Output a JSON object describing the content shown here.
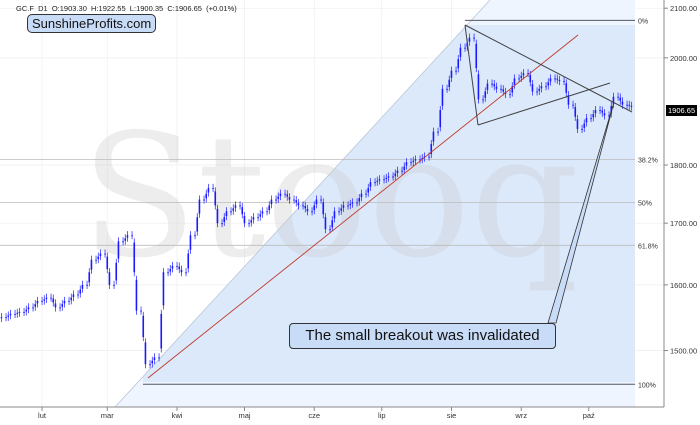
{
  "header": {
    "symbol": "GC.F",
    "interval": "D1",
    "text": "GC.F  D1  O:1903.30  H:1922.55  L:1900.35  C:1906.65  (+0.01%)"
  },
  "logo": "SunshineProfits.com",
  "watermark": "Stooq",
  "annotation": "The small breakout was invalidated",
  "chart_data": {
    "type": "candlestick",
    "title": "",
    "y_scale": "log",
    "ylim": [
      1419,
      2117
    ],
    "y_ticks": [
      "2100.00",
      "2000.00",
      "1800.00",
      "1700.00",
      "1600.00",
      "1500.00"
    ],
    "y_tick_values": [
      2100,
      2000,
      1800,
      1700,
      1600,
      1500
    ],
    "x_ticks": [
      "lut",
      "mar",
      "kwi",
      "maj",
      "cze",
      "lip",
      "sie",
      "wrz",
      "paź"
    ],
    "x_tick_dates": [
      "2020-02-01",
      "2020-03-01",
      "2020-04-01",
      "2020-05-01",
      "2020-06-01",
      "2020-07-01",
      "2020-08-01",
      "2020-09-01",
      "2020-10-01"
    ],
    "last_price": "1906.65",
    "candle_color": "#1a1aff",
    "dates": [
      "2020-01-13",
      "2020-01-17",
      "2020-01-21",
      "2020-01-25",
      "2020-01-29",
      "2020-02-02",
      "2020-02-06",
      "2020-02-10",
      "2020-02-14",
      "2020-02-18",
      "2020-02-22",
      "2020-02-26",
      "2020-03-01",
      "2020-03-05",
      "2020-03-09",
      "2020-03-13",
      "2020-03-17",
      "2020-03-21",
      "2020-03-25",
      "2020-03-29",
      "2020-04-02",
      "2020-04-06",
      "2020-04-10",
      "2020-04-14",
      "2020-04-18",
      "2020-04-22",
      "2020-04-26",
      "2020-04-30",
      "2020-05-04",
      "2020-05-08",
      "2020-05-12",
      "2020-05-16",
      "2020-05-20",
      "2020-05-24",
      "2020-05-28",
      "2020-06-01",
      "2020-06-05",
      "2020-06-09",
      "2020-06-13",
      "2020-06-17",
      "2020-06-21",
      "2020-06-25",
      "2020-06-29",
      "2020-07-03",
      "2020-07-07",
      "2020-07-11",
      "2020-07-15",
      "2020-07-19",
      "2020-07-23",
      "2020-07-27",
      "2020-07-31",
      "2020-08-04",
      "2020-08-08",
      "2020-08-12",
      "2020-08-16",
      "2020-08-20",
      "2020-08-24",
      "2020-08-28",
      "2020-09-01",
      "2020-09-05",
      "2020-09-09",
      "2020-09-13",
      "2020-09-17",
      "2020-09-21",
      "2020-09-25",
      "2020-09-29",
      "2020-10-03",
      "2020-10-07",
      "2020-10-11",
      "2020-10-15",
      "2020-10-19"
    ],
    "close": [
      1550,
      1555,
      1558,
      1565,
      1575,
      1580,
      1565,
      1575,
      1585,
      1600,
      1640,
      1650,
      1600,
      1670,
      1680,
      1560,
      1480,
      1490,
      1620,
      1630,
      1620,
      1680,
      1740,
      1760,
      1700,
      1720,
      1730,
      1700,
      1710,
      1720,
      1740,
      1750,
      1740,
      1730,
      1720,
      1740,
      1690,
      1720,
      1730,
      1735,
      1750,
      1770,
      1775,
      1780,
      1790,
      1805,
      1810,
      1815,
      1860,
      1940,
      1975,
      2020,
      2040,
      1920,
      1950,
      1940,
      1930,
      1960,
      1970,
      1935,
      1945,
      1960,
      1955,
      1910,
      1865,
      1885,
      1900,
      1890,
      1925,
      1910,
      1906.65
    ],
    "fibonacci": {
      "high": 2075,
      "low": 1451,
      "levels": [
        {
          "label": "0%",
          "ratio": 0
        },
        {
          "label": "38.2%",
          "ratio": 0.382
        },
        {
          "label": "50%",
          "ratio": 0.5
        },
        {
          "label": "61.8%",
          "ratio": 0.618
        },
        {
          "label": "100%",
          "ratio": 1
        }
      ]
    },
    "colors": {
      "trend_red": "#c0392b",
      "lines": "#444444",
      "shade": "#dbe9fb"
    }
  }
}
